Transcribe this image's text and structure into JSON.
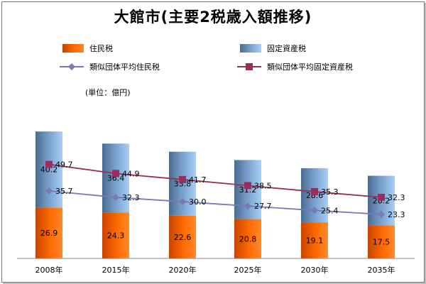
{
  "title": "大館市(主要2税歳入額推移)",
  "unit_label": "(単位：億円)",
  "legend": [
    {
      "label": "住民税",
      "kind": "bar",
      "color": "#ff6600"
    },
    {
      "label": "固定資産税",
      "kind": "bar",
      "color": "#5b84b1"
    },
    {
      "label": "類似団体平均住民税",
      "kind": "line",
      "color": "#7b78b6"
    },
    {
      "label": "類似団体平均固定資産税",
      "kind": "line",
      "color": "#9b2c5c"
    }
  ],
  "chart_data": {
    "type": "bar",
    "stacked": true,
    "title": "大館市(主要2税歳入額推移)",
    "ylabel": "(単位：億円)",
    "categories": [
      "2008年",
      "2015年",
      "2020年",
      "2025年",
      "2030年",
      "2035年"
    ],
    "series": [
      {
        "name": "住民税",
        "type": "bar",
        "values": [
          26.9,
          24.3,
          22.6,
          20.8,
          19.1,
          17.5
        ],
        "color": "#ff6600"
      },
      {
        "name": "固定資産税",
        "type": "bar",
        "values": [
          40.2,
          36.4,
          33.8,
          31.2,
          28.6,
          26.2
        ],
        "color": "#5b84b1"
      },
      {
        "name": "類似団体平均住民税",
        "type": "line",
        "values": [
          35.7,
          32.3,
          30.0,
          27.7,
          25.4,
          23.3
        ],
        "color": "#7b78b6"
      },
      {
        "name": "類似団体平均固定資産税",
        "type": "line",
        "values": [
          49.7,
          44.9,
          41.7,
          38.5,
          35.3,
          32.3
        ],
        "color": "#9b2c5c"
      }
    ],
    "ylim": [
      0,
      75
    ],
    "grid": false,
    "legend_position": "top"
  }
}
